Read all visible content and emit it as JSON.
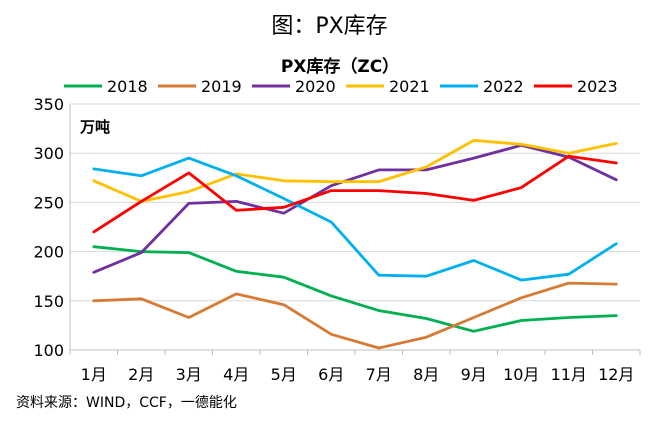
{
  "page_title": "图：PX库存",
  "source_note": "资料来源：WIND，CCF，一德能化",
  "chart_data": {
    "type": "line",
    "title": "PX库存（ZC）",
    "unit_label": "万吨",
    "xlabel": "",
    "ylabel": "万吨",
    "ylim": [
      100,
      350
    ],
    "yticks": [
      100,
      150,
      200,
      250,
      300,
      350
    ],
    "grid": true,
    "legend_position": "top",
    "categories": [
      "1月",
      "2月",
      "3月",
      "4月",
      "5月",
      "6月",
      "7月",
      "8月",
      "9月",
      "10月",
      "11月",
      "12月"
    ],
    "series": [
      {
        "name": "2018",
        "color": "#00B050",
        "values": [
          205,
          200,
          199,
          180,
          174,
          155,
          140,
          132,
          119,
          130,
          133,
          135
        ]
      },
      {
        "name": "2019",
        "color": "#D77A34",
        "values": [
          150,
          152,
          133,
          157,
          146,
          116,
          102,
          113,
          133,
          153,
          168,
          167
        ]
      },
      {
        "name": "2020",
        "color": "#7030A0",
        "values": [
          179,
          199,
          249,
          251,
          239,
          267,
          283,
          283,
          295,
          308,
          296,
          273
        ]
      },
      {
        "name": "2021",
        "color": "#FFC000",
        "values": [
          272,
          251,
          261,
          279,
          272,
          271,
          271,
          286,
          313,
          309,
          300,
          310
        ]
      },
      {
        "name": "2022",
        "color": "#00B0F0",
        "values": [
          284,
          277,
          295,
          277,
          254,
          230,
          176,
          175,
          191,
          171,
          177,
          208
        ]
      },
      {
        "name": "2023",
        "color": "#FF0000",
        "values": [
          220,
          251,
          280,
          242,
          245,
          262,
          262,
          259,
          252,
          265,
          297,
          290
        ]
      }
    ]
  }
}
